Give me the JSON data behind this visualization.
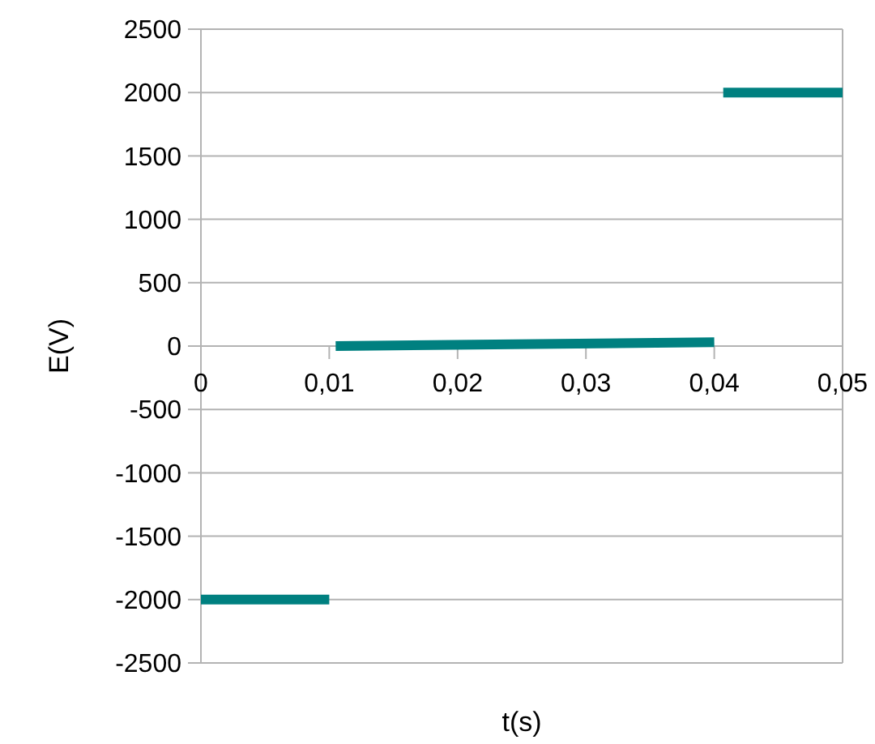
{
  "chart_data": {
    "type": "line",
    "xlabel": "t(s)",
    "ylabel": "E(V)",
    "xlim": [
      0,
      0.05
    ],
    "xticks": [
      {
        "value": 0,
        "label": "0"
      },
      {
        "value": 0.01,
        "label": "0,01"
      },
      {
        "value": 0.02,
        "label": "0,02"
      },
      {
        "value": 0.03,
        "label": "0,03"
      },
      {
        "value": 0.04,
        "label": "0,04"
      },
      {
        "value": 0.05,
        "label": "0,05"
      }
    ],
    "ylim": [
      -2500,
      2500
    ],
    "yticks": [
      -2500,
      -2000,
      -1500,
      -1000,
      -500,
      0,
      500,
      1000,
      1500,
      2000,
      2500
    ],
    "grid": "y",
    "marker": "none",
    "line_style": "solid",
    "series": [
      {
        "color": "#008080",
        "x": [
          0,
          0.01
        ],
        "values": [
          -2000,
          -2000
        ]
      },
      {
        "color": "#008080",
        "x": [
          0.0105,
          0.04
        ],
        "values": [
          0,
          30
        ]
      },
      {
        "color": "#008080",
        "x": [
          0.0407,
          0.05
        ],
        "values": [
          2000,
          2000
        ]
      }
    ]
  }
}
